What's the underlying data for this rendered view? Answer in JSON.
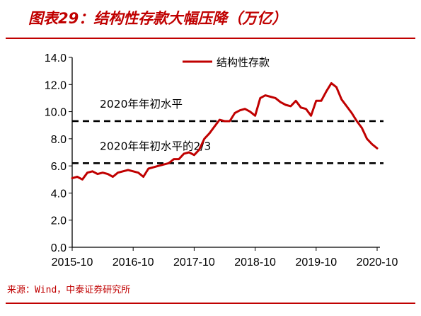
{
  "title": "图表29：结构性存款大幅压降（万亿）",
  "source": "来源：Wind，中泰证券研究所",
  "colors": {
    "accent": "#c00000",
    "series": "#c00000",
    "axis": "#000000",
    "reference": "#000000"
  },
  "chart_data": {
    "type": "line",
    "ylim": [
      0,
      14
    ],
    "y_ticks": [
      "0.0",
      "2.0",
      "4.0",
      "6.0",
      "8.0",
      "10.0",
      "12.0",
      "14.0"
    ],
    "x_ticks": [
      "2015-10",
      "2016-10",
      "2017-10",
      "2018-10",
      "2019-10",
      "2020-10"
    ],
    "legend_position": "top-right",
    "series": [
      {
        "name": "结构性存款",
        "x": [
          "2015-10",
          "2015-11",
          "2015-12",
          "2016-01",
          "2016-02",
          "2016-03",
          "2016-04",
          "2016-05",
          "2016-06",
          "2016-07",
          "2016-08",
          "2016-09",
          "2016-10",
          "2016-11",
          "2016-12",
          "2017-01",
          "2017-02",
          "2017-03",
          "2017-04",
          "2017-05",
          "2017-06",
          "2017-07",
          "2017-08",
          "2017-09",
          "2017-10",
          "2017-11",
          "2017-12",
          "2018-01",
          "2018-02",
          "2018-03",
          "2018-04",
          "2018-05",
          "2018-06",
          "2018-07",
          "2018-08",
          "2018-09",
          "2018-10",
          "2018-11",
          "2018-12",
          "2019-01",
          "2019-02",
          "2019-03",
          "2019-04",
          "2019-05",
          "2019-06",
          "2019-07",
          "2019-08",
          "2019-09",
          "2019-10",
          "2019-11",
          "2019-12",
          "2020-01",
          "2020-02",
          "2020-03",
          "2020-04",
          "2020-05",
          "2020-06",
          "2020-07",
          "2020-08",
          "2020-09",
          "2020-10"
        ],
        "values": [
          5.1,
          5.2,
          5.0,
          5.5,
          5.6,
          5.4,
          5.5,
          5.4,
          5.2,
          5.5,
          5.6,
          5.7,
          5.6,
          5.5,
          5.2,
          5.8,
          5.9,
          6.0,
          6.1,
          6.2,
          6.5,
          6.5,
          6.9,
          7.0,
          6.8,
          7.2,
          8.0,
          8.4,
          8.9,
          9.4,
          9.3,
          9.3,
          9.9,
          10.1,
          10.2,
          10.0,
          9.7,
          11.0,
          11.2,
          11.1,
          11.0,
          10.7,
          10.5,
          10.4,
          10.8,
          10.3,
          10.2,
          9.7,
          10.8,
          10.8,
          11.5,
          12.1,
          11.8,
          10.9,
          10.4,
          9.9,
          9.3,
          8.8,
          8.0,
          7.6,
          7.3
        ]
      }
    ],
    "reference_lines": [
      {
        "label": "2020年年初水平",
        "value": 9.3
      },
      {
        "label": "2020年年初水平的2/3",
        "value": 6.2
      }
    ]
  }
}
